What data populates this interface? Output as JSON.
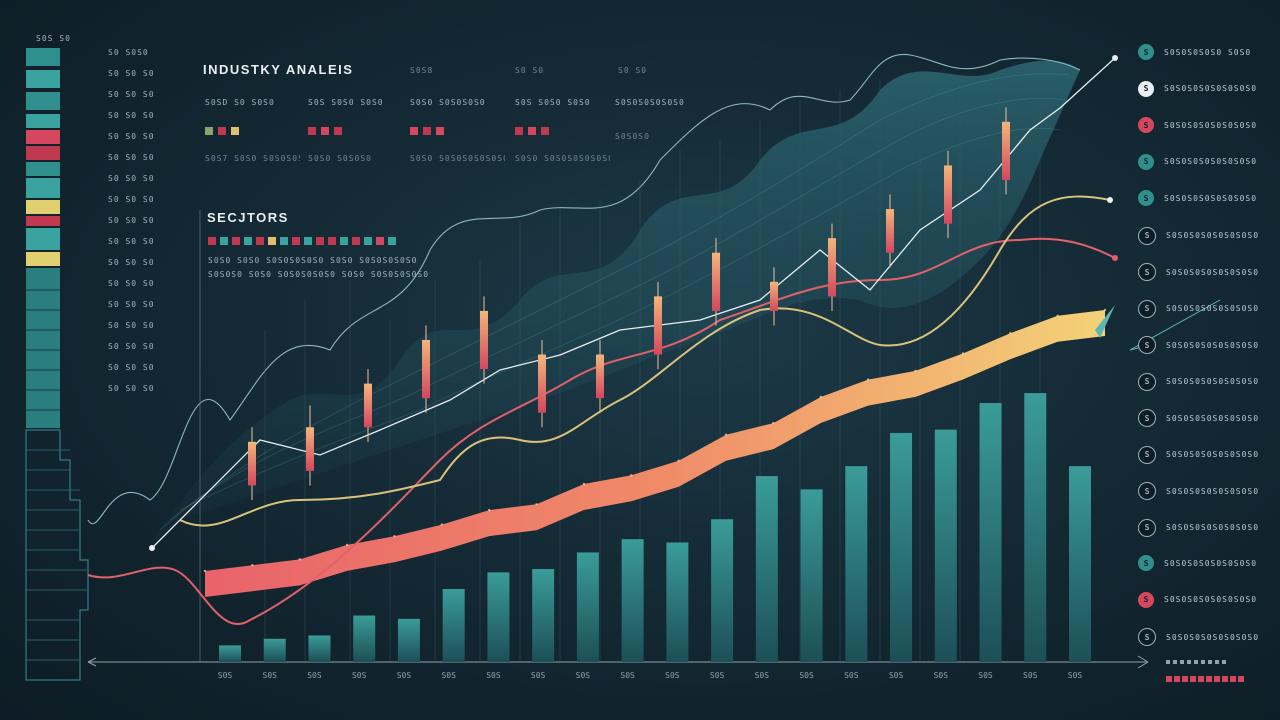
{
  "header": {
    "title": "INDUSTKY ANALEIS",
    "col_heads": [
      "S0S8",
      "S0 S0",
      "S0 S0"
    ],
    "sectors_title": "SECJTORS"
  },
  "industry_cells": [
    {
      "label": "S0SD S0 S0S0",
      "swatches": [
        "#8aa36a",
        "#c0394f",
        "#e0c070"
      ],
      "foot": "S0S7 S0S0 S0S0S0S0S0S0"
    },
    {
      "label": "S0S S0S0 S0S0",
      "swatches": [
        "#c0394f",
        "#d5475e",
        "#c0394f"
      ],
      "foot": "S0S0 S0S0S0"
    },
    {
      "label": "S0S0 S0S0S0S0",
      "swatches": [
        "#d5475e",
        "#c0394f",
        "#d5475e"
      ],
      "foot": "S0S0 S0S0S0S0S0S0S0S0"
    },
    {
      "label": "S0S S0S0 S0S0",
      "swatches": [
        "#c0394f",
        "#d5475e",
        "#c0394f"
      ],
      "foot": "S0S0 S0S0S0S0S0S0S0S0"
    },
    {
      "label": "S0S0S0S0S0S0",
      "swatches": [],
      "foot": "S0S0S0"
    }
  ],
  "sectors": {
    "swatches": [
      "#c0394f",
      "#3aa3a0",
      "#c0394f",
      "#3aa3a0",
      "#c0394f",
      "#e0c070",
      "#3aa3a0",
      "#c0394f",
      "#3aa3a0",
      "#c0394f",
      "#c0394f",
      "#3aa3a0",
      "#c0394f",
      "#3aa3a0",
      "#d5475e",
      "#3aa3a0"
    ],
    "row1": "S0S0 S0S0 S0S0S0S0S0 S0S0 S0S0S0S0S0",
    "row2": "S0S0S0 S0S0 S0S0S0S0S0 S0S0 S0S0S0S0S0"
  },
  "left_labels": [
    "S0S S0",
    "S0 S0S0",
    "S0 S0 S0",
    "S0 S0 S0",
    "S0 S0 S0",
    "S0 S0 S0",
    "S0 S0 S0",
    "S0 S0 S0",
    "S0 S0 S0",
    "S0 S0 S0",
    "S0 S0 S0",
    "S0 S0 S0",
    "S0 S0 S0",
    "S0 S0 S0",
    "S0 S0 S0",
    "S0 S0 S0",
    "S0 S0 S0",
    "S0 S0 S0"
  ],
  "right_legend": [
    {
      "icon": "S",
      "color": "#2f8f8c",
      "text": "S0S0S0S0S0 S0S0"
    },
    {
      "icon": "S",
      "color": "#e8eef1",
      "text": "S0S0S0S0S0S0S0S0"
    },
    {
      "icon": "S",
      "color": "#d5475e",
      "text": "S0S0S0S0S0S0S0S0"
    },
    {
      "icon": "S",
      "color": "#2f8f8c",
      "text": "S0S0S0S0S0S0S0S0"
    },
    {
      "icon": "S",
      "color": "#2f8f8c",
      "text": "S0S0S0S0S0S0S0S0"
    },
    {
      "icon": "S",
      "color": "#0d1c25",
      "text": "S0S0S0S0S0S0S0S0"
    },
    {
      "icon": "S",
      "color": "#0d1c25",
      "text": "S0S0S0S0S0S0S0S0"
    },
    {
      "icon": "S",
      "color": "#0d1c25",
      "text": "S0S0S0S0S0S0S0S0"
    },
    {
      "icon": "S",
      "color": "#0d1c25",
      "text": "S0S0S0S0S0S0S0S0"
    },
    {
      "icon": "S",
      "color": "#0d1c25",
      "text": "S0S0S0S0S0S0S0S0"
    },
    {
      "icon": "S",
      "color": "#0d1c25",
      "text": "S0S0S0S0S0S0S0S0"
    },
    {
      "icon": "S",
      "color": "#0d1c25",
      "text": "S0S0S0S0S0S0S0S0"
    },
    {
      "icon": "S",
      "color": "#0d1c25",
      "text": "S0S0S0S0S0S0S0S0"
    },
    {
      "icon": "S",
      "color": "#0d1c25",
      "text": "S0S0S0S0S0S0S0S0"
    },
    {
      "icon": "S",
      "color": "#2f8f8c",
      "text": "S0S0S0S0S0S0S0S0"
    },
    {
      "icon": "S",
      "color": "#d5475e",
      "text": "S0S0S0S0S0S0S0S0"
    },
    {
      "icon": "S",
      "color": "#0d1c25",
      "text": "S0S0S0S0S0S0S0S0"
    }
  ],
  "chart_data": {
    "type": "bar",
    "categories": [
      "S0S",
      "S0S",
      "S0S",
      "S0S",
      "S0S",
      "S0S",
      "S0S",
      "S0S",
      "S0S",
      "S0S",
      "S0S",
      "S0S",
      "S0S",
      "S0S",
      "S0S",
      "S0S",
      "S0S",
      "S0S",
      "S0S",
      "S0S"
    ],
    "series": [
      {
        "values": [
          5,
          7,
          8,
          14,
          13,
          22,
          27,
          28,
          33,
          37,
          36,
          43,
          56,
          52,
          59,
          69,
          70,
          78,
          81,
          59
        ]
      },
      {
        "values": [
          10,
          12,
          14,
          19,
          22,
          26,
          31,
          33,
          40,
          43,
          48,
          57,
          61,
          70,
          76,
          79,
          85,
          92,
          98,
          100
        ]
      }
    ],
    "candles": [
      {
        "o": 42,
        "c": 48,
        "h": 50,
        "l": 40
      },
      {
        "o": 44,
        "c": 50,
        "h": 53,
        "l": 42
      },
      {
        "o": 50,
        "c": 56,
        "h": 58,
        "l": 48
      },
      {
        "o": 54,
        "c": 62,
        "h": 64,
        "l": 52
      },
      {
        "o": 58,
        "c": 66,
        "h": 68,
        "l": 56
      },
      {
        "o": 60,
        "c": 52,
        "h": 62,
        "l": 50
      },
      {
        "o": 54,
        "c": 60,
        "h": 62,
        "l": 52
      },
      {
        "o": 60,
        "c": 68,
        "h": 70,
        "l": 58
      },
      {
        "o": 66,
        "c": 74,
        "h": 76,
        "l": 64
      },
      {
        "o": 70,
        "c": 66,
        "h": 72,
        "l": 64
      },
      {
        "o": 68,
        "c": 76,
        "h": 78,
        "l": 66
      },
      {
        "o": 74,
        "c": 80,
        "h": 82,
        "l": 72
      },
      {
        "o": 78,
        "c": 86,
        "h": 88,
        "l": 76
      },
      {
        "o": 84,
        "c": 92,
        "h": 94,
        "l": 82
      }
    ],
    "colors": {
      "bars": "#2f8f8c",
      "ribbon_start": "#e8636a",
      "ribbon_end": "#f3d277",
      "candle": "#d5475e",
      "area": "#2a5f6a"
    },
    "title": "",
    "xlabel": "",
    "ylabel": "",
    "grid": false
  }
}
